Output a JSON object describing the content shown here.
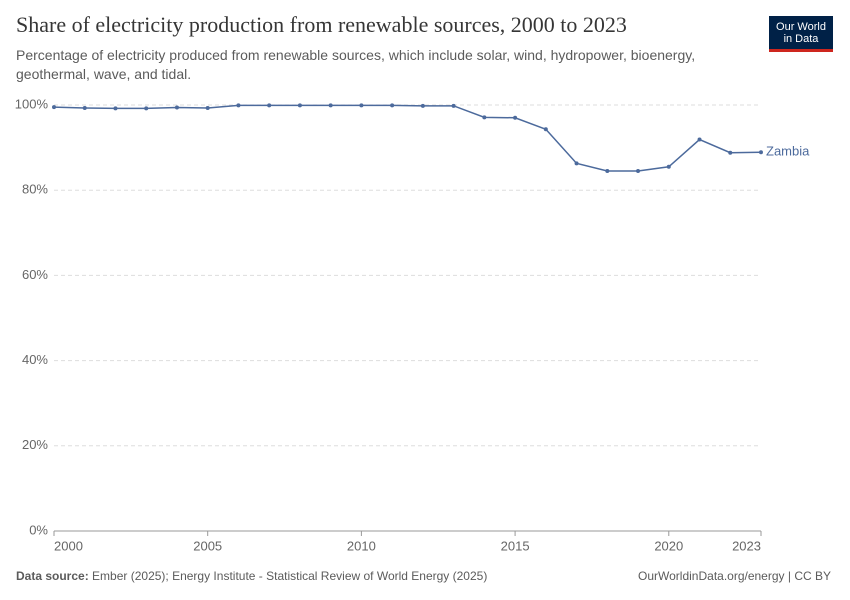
{
  "chart_data": {
    "type": "line",
    "title": "Share of electricity production from renewable sources, 2000 to 2023",
    "subtitle": "Percentage of electricity produced from renewable sources, which include solar, wind, hydropower, bioenergy, geothermal, wave, and tidal.",
    "x": [
      2000,
      2001,
      2002,
      2003,
      2004,
      2005,
      2006,
      2007,
      2008,
      2009,
      2010,
      2011,
      2012,
      2013,
      2014,
      2015,
      2016,
      2017,
      2018,
      2019,
      2020,
      2021,
      2022,
      2023
    ],
    "series": [
      {
        "name": "Zambia",
        "color": "#4c6a9c",
        "values": [
          99.5,
          99.3,
          99.2,
          99.2,
          99.4,
          99.3,
          99.9,
          99.9,
          99.9,
          99.9,
          99.9,
          99.9,
          99.8,
          99.8,
          97.1,
          97.0,
          94.3,
          86.3,
          84.5,
          84.5,
          85.5,
          91.9,
          88.8,
          88.9
        ]
      }
    ],
    "xlim": [
      2000,
      2023
    ],
    "ylim": [
      0,
      100
    ],
    "xticks": [
      2000,
      2005,
      2010,
      2015,
      2020,
      2023
    ],
    "yticks": [
      {
        "value": 0,
        "label": "0%"
      },
      {
        "value": 20,
        "label": "20%"
      },
      {
        "value": 40,
        "label": "40%"
      },
      {
        "value": 60,
        "label": "60%"
      },
      {
        "value": 80,
        "label": "80%"
      },
      {
        "value": 100,
        "label": "100%"
      }
    ],
    "grid": true
  },
  "logo": [
    "Our World",
    "in Data"
  ],
  "source": {
    "label": "Data source:",
    "text": "Ember (2025); Energy Institute - Statistical Review of World Energy (2025)"
  },
  "footer_link": "OurWorldinData.org/energy | CC BY"
}
